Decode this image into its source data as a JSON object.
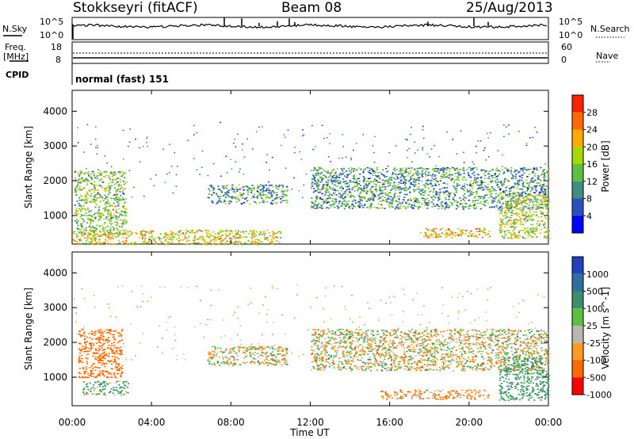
{
  "header": {
    "station": "Stokkseyri (fitACF)",
    "beam": "Beam 08",
    "date": "25/Aug/2013"
  },
  "top_panels": {
    "nsky_label": "N.Sky",
    "nsky_ticks": [
      "10^5",
      "10^0"
    ],
    "nsearch_label": "N.Search",
    "nsearch_ticks": [
      "10^5",
      "10^0"
    ],
    "freq_label": "Freq.",
    "freq_unit": "[MHz]",
    "freq_ticks": [
      "18",
      "8"
    ],
    "nave_label": "Nave",
    "nave_ticks": [
      "60",
      "0"
    ],
    "cpid_label": "CPID",
    "cpid_value": "normal (fast) 151"
  },
  "x_axis": {
    "label": "Time UT",
    "ticks": [
      "00:00",
      "04:00",
      "08:00",
      "12:00",
      "16:00",
      "20:00",
      "00:00"
    ]
  },
  "power_panel": {
    "ylabel": "Slant Range [km]",
    "yticks": [
      "4000",
      "3000",
      "2000",
      "1000"
    ],
    "colorbar_label": "Power [dB]",
    "colorbar_ticks": [
      "28",
      "24",
      "20",
      "16",
      "12",
      "8",
      "4"
    ],
    "colors": [
      "#0000ff",
      "#2b4fbf",
      "#3d8f7f",
      "#5fbf3f",
      "#a8d800",
      "#ffaa00",
      "#ff6a00",
      "#ff2000"
    ]
  },
  "velocity_panel": {
    "ylabel": "Slant Range [km]",
    "yticks": [
      "4000",
      "3000",
      "2000",
      "1000"
    ],
    "colorbar_label": "Velocity [m s^-1]",
    "colorbar_ticks": [
      "1000",
      "500",
      "100",
      "25",
      "-25",
      "-100",
      "-500",
      "-1000"
    ],
    "colors": [
      "#2040c0",
      "#2e6f9f",
      "#3b8f6f",
      "#5cbf3f",
      "#b8b8b0",
      "#ff9a20",
      "#ff6a00",
      "#ff0000"
    ]
  },
  "chart_data": [
    {
      "type": "heatmap",
      "title": "Power",
      "xlabel": "Time UT",
      "ylabel": "Slant Range [km]",
      "xlim": [
        0,
        24
      ],
      "ylim": [
        180,
        4600
      ],
      "colorbar": {
        "label": "Power [dB]",
        "range": [
          0,
          30
        ]
      },
      "regions": [
        {
          "t": [
            0.1,
            2.7
          ],
          "r": [
            400,
            2300
          ],
          "value": 14
        },
        {
          "t": [
            0.0,
            10.5
          ],
          "r": [
            180,
            600
          ],
          "value": 18
        },
        {
          "t": [
            6.8,
            10.8
          ],
          "r": [
            1350,
            1900
          ],
          "value": 10
        },
        {
          "t": [
            12.0,
            24.0
          ],
          "r": [
            1200,
            2400
          ],
          "value": 10
        },
        {
          "t": [
            17.5,
            21.0
          ],
          "r": [
            380,
            650
          ],
          "value": 20
        },
        {
          "t": [
            21.5,
            24.0
          ],
          "r": [
            350,
            1600
          ],
          "value": 16
        }
      ]
    },
    {
      "type": "heatmap",
      "title": "Velocity",
      "xlabel": "Time UT",
      "ylabel": "Slant Range [km]",
      "xlim": [
        0,
        24
      ],
      "ylim": [
        180,
        4600
      ],
      "colorbar": {
        "label": "Velocity [m s^-1]",
        "range": [
          -1000,
          1000
        ]
      },
      "regions": [
        {
          "t": [
            0.3,
            2.5
          ],
          "r": [
            1000,
            2400
          ],
          "value": -300
        },
        {
          "t": [
            0.5,
            2.8
          ],
          "r": [
            500,
            900
          ],
          "value": 100
        },
        {
          "t": [
            6.8,
            10.8
          ],
          "r": [
            1350,
            1900
          ],
          "value": 0
        },
        {
          "t": [
            12.0,
            24.0
          ],
          "r": [
            1200,
            2400
          ],
          "value": 0
        },
        {
          "t": [
            15.5,
            21.0
          ],
          "r": [
            380,
            650
          ],
          "value": -100
        },
        {
          "t": [
            21.5,
            24.0
          ],
          "r": [
            350,
            1600
          ],
          "value": 200
        }
      ]
    }
  ]
}
